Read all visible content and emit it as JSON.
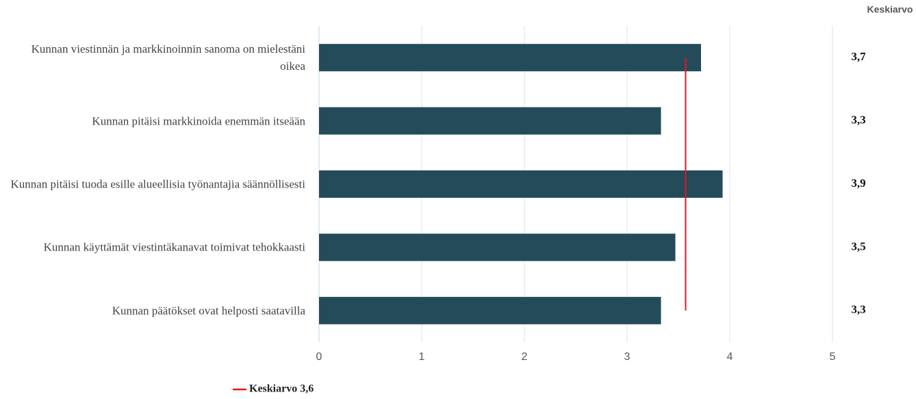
{
  "chart_data": {
    "type": "barh",
    "categories": [
      "Kunnan viestinnän ja markkinoinnin sanoma on mielestäni oikea",
      "Kunnan pitäisi markkinoida enemmän itseään",
      "Kunnan pitäisi tuoda esille alueellisia työnantajia säännöllisesti",
      "Kunnan käyttämät viestintäkanavat toimivat tehokkaasti",
      "Kunnan päätökset ovat helposti saatavilla"
    ],
    "values": [
      3.72,
      3.33,
      3.93,
      3.47,
      3.33
    ],
    "value_labels": [
      "3,7",
      "3,3",
      "3,9",
      "3,5",
      "3,3"
    ],
    "value_labels_header": "Keskiarvo",
    "color": "#244b5a",
    "xlim": [
      0,
      5
    ],
    "xticks": [
      0,
      1,
      2,
      3,
      4,
      5
    ],
    "grid": true,
    "average": {
      "value": 3.57,
      "label": "Keskiarvo 3,6",
      "color": "#e8141c"
    }
  }
}
